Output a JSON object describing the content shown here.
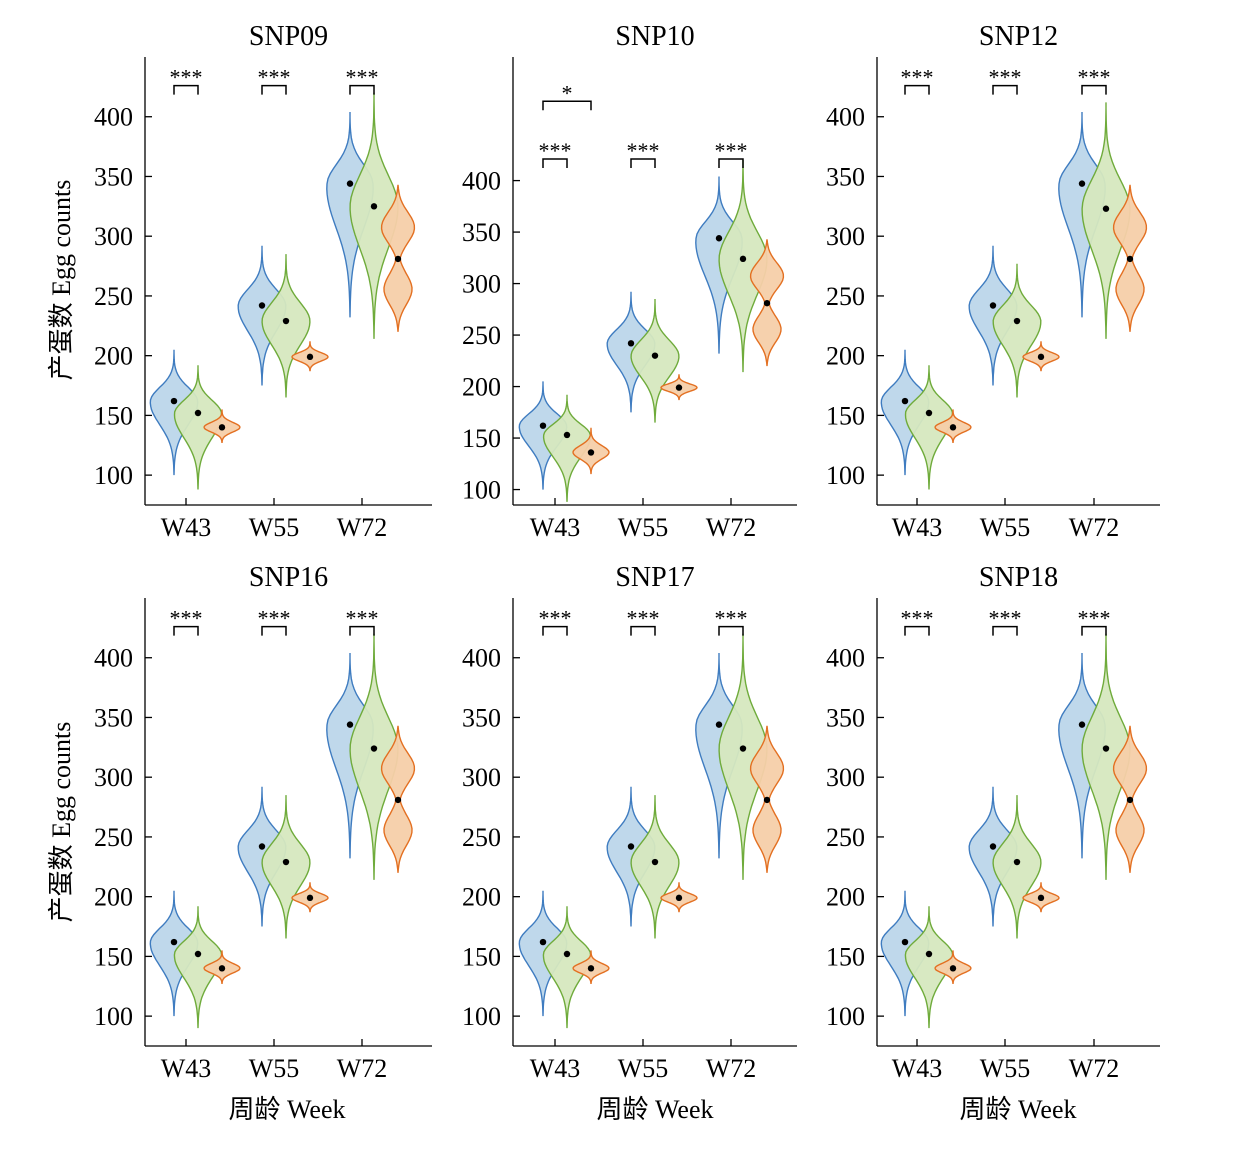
{
  "figure": {
    "ylabel": "产蛋数 Egg counts",
    "xlabel": "周龄 Week",
    "colors": {
      "blue_fill": "#bcd6ea",
      "blue_line": "#3f7cc0",
      "green_fill": "#d6e8bf",
      "green_line": "#6fab3b",
      "orange_fill": "#f6cfa9",
      "orange_line": "#e37022"
    }
  },
  "chart_data": [
    {
      "type": "violin",
      "title": "SNP09",
      "categories": [
        "W43",
        "W55",
        "W72"
      ],
      "yticks": [
        100,
        150,
        200,
        250,
        300,
        350,
        400
      ],
      "ylim": [
        75,
        450
      ],
      "series": [
        {
          "color": "blue",
          "medians": [
            162,
            242,
            344
          ],
          "ranges": [
            [
              100,
              205
            ],
            [
              175,
              292
            ],
            [
              232,
              404
            ]
          ]
        },
        {
          "color": "green",
          "medians": [
            152,
            229,
            325
          ],
          "ranges": [
            [
              88,
              192
            ],
            [
              165,
              285
            ],
            [
              214,
              420
            ]
          ]
        },
        {
          "color": "orange",
          "medians": [
            140,
            199,
            281
          ],
          "ranges": [
            [
              127,
              155
            ],
            [
              187,
              212
            ],
            [
              220,
              343
            ]
          ]
        }
      ],
      "significance": [
        {
          "label": "***",
          "category": 0,
          "from": 0,
          "to": 1,
          "y": 426
        },
        {
          "label": "***",
          "category": 1,
          "from": 0,
          "to": 1,
          "y": 426
        },
        {
          "label": "***",
          "category": 2,
          "from": 0,
          "to": 1,
          "y": 426
        }
      ]
    },
    {
      "type": "violin",
      "title": "SNP10",
      "categories": [
        "W43",
        "W55",
        "W72"
      ],
      "yticks": [
        100,
        150,
        200,
        250,
        300,
        350,
        400
      ],
      "ylim": [
        85,
        520
      ],
      "series": [
        {
          "color": "blue",
          "medians": [
            162,
            242,
            344
          ],
          "ranges": [
            [
              100,
              205
            ],
            [
              175,
              292
            ],
            [
              232,
              404
            ]
          ]
        },
        {
          "color": "green",
          "medians": [
            153,
            230,
            324
          ],
          "ranges": [
            [
              88,
              192
            ],
            [
              165,
              285
            ],
            [
              214,
              420
            ]
          ]
        },
        {
          "color": "orange",
          "medians": [
            136,
            199,
            281
          ],
          "ranges": [
            [
              115,
              160
            ],
            [
              187,
              212
            ],
            [
              220,
              343
            ]
          ]
        }
      ],
      "significance": [
        {
          "label": "*",
          "category": 0,
          "from": 0,
          "to": 2,
          "y": 477
        },
        {
          "label": "***",
          "category": 0,
          "from": 0,
          "to": 1,
          "y": 421
        },
        {
          "label": "***",
          "category": 1,
          "from": 0,
          "to": 1,
          "y": 421
        },
        {
          "label": "***",
          "category": 2,
          "from": 0,
          "to": 1,
          "y": 421
        }
      ]
    },
    {
      "type": "violin",
      "title": "SNP12",
      "categories": [
        "W43",
        "W55",
        "W72"
      ],
      "yticks": [
        100,
        150,
        200,
        250,
        300,
        350,
        400
      ],
      "ylim": [
        75,
        450
      ],
      "series": [
        {
          "color": "blue",
          "medians": [
            162,
            242,
            344
          ],
          "ranges": [
            [
              100,
              205
            ],
            [
              175,
              292
            ],
            [
              232,
              404
            ]
          ]
        },
        {
          "color": "green",
          "medians": [
            152,
            229,
            323
          ],
          "ranges": [
            [
              88,
              192
            ],
            [
              165,
              277
            ],
            [
              214,
              412
            ]
          ]
        },
        {
          "color": "orange",
          "medians": [
            140,
            199,
            281
          ],
          "ranges": [
            [
              127,
              155
            ],
            [
              187,
              212
            ],
            [
              220,
              343
            ]
          ]
        }
      ],
      "significance": [
        {
          "label": "***",
          "category": 0,
          "from": 0,
          "to": 1,
          "y": 426
        },
        {
          "label": "***",
          "category": 1,
          "from": 0,
          "to": 1,
          "y": 426
        },
        {
          "label": "***",
          "category": 2,
          "from": 0,
          "to": 1,
          "y": 426
        }
      ]
    },
    {
      "type": "violin",
      "title": "SNP16",
      "categories": [
        "W43",
        "W55",
        "W72"
      ],
      "yticks": [
        100,
        150,
        200,
        250,
        300,
        350,
        400
      ],
      "ylim": [
        75,
        450
      ],
      "series": [
        {
          "color": "blue",
          "medians": [
            162,
            242,
            344
          ],
          "ranges": [
            [
              100,
              205
            ],
            [
              175,
              292
            ],
            [
              232,
              404
            ]
          ]
        },
        {
          "color": "green",
          "medians": [
            152,
            229,
            324
          ],
          "ranges": [
            [
              90,
              192
            ],
            [
              165,
              285
            ],
            [
              214,
              420
            ]
          ]
        },
        {
          "color": "orange",
          "medians": [
            140,
            199,
            281
          ],
          "ranges": [
            [
              127,
              155
            ],
            [
              187,
              212
            ],
            [
              220,
              343
            ]
          ]
        }
      ],
      "significance": [
        {
          "label": "***",
          "category": 0,
          "from": 0,
          "to": 1,
          "y": 426
        },
        {
          "label": "***",
          "category": 1,
          "from": 0,
          "to": 1,
          "y": 426
        },
        {
          "label": "***",
          "category": 2,
          "from": 0,
          "to": 1,
          "y": 426
        }
      ]
    },
    {
      "type": "violin",
      "title": "SNP17",
      "categories": [
        "W43",
        "W55",
        "W72"
      ],
      "yticks": [
        100,
        150,
        200,
        250,
        300,
        350,
        400
      ],
      "ylim": [
        75,
        450
      ],
      "series": [
        {
          "color": "blue",
          "medians": [
            162,
            242,
            344
          ],
          "ranges": [
            [
              100,
              205
            ],
            [
              175,
              292
            ],
            [
              232,
              404
            ]
          ]
        },
        {
          "color": "green",
          "medians": [
            152,
            229,
            324
          ],
          "ranges": [
            [
              90,
              192
            ],
            [
              165,
              285
            ],
            [
              214,
              420
            ]
          ]
        },
        {
          "color": "orange",
          "medians": [
            140,
            199,
            281
          ],
          "ranges": [
            [
              127,
              155
            ],
            [
              187,
              212
            ],
            [
              220,
              343
            ]
          ]
        }
      ],
      "significance": [
        {
          "label": "***",
          "category": 0,
          "from": 0,
          "to": 1,
          "y": 426
        },
        {
          "label": "***",
          "category": 1,
          "from": 0,
          "to": 1,
          "y": 426
        },
        {
          "label": "***",
          "category": 2,
          "from": 0,
          "to": 1,
          "y": 426
        }
      ]
    },
    {
      "type": "violin",
      "title": "SNP18",
      "categories": [
        "W43",
        "W55",
        "W72"
      ],
      "yticks": [
        100,
        150,
        200,
        250,
        300,
        350,
        400
      ],
      "ylim": [
        75,
        450
      ],
      "series": [
        {
          "color": "blue",
          "medians": [
            162,
            242,
            344
          ],
          "ranges": [
            [
              100,
              205
            ],
            [
              175,
              292
            ],
            [
              232,
              404
            ]
          ]
        },
        {
          "color": "green",
          "medians": [
            152,
            229,
            324
          ],
          "ranges": [
            [
              90,
              192
            ],
            [
              165,
              285
            ],
            [
              214,
              420
            ]
          ]
        },
        {
          "color": "orange",
          "medians": [
            140,
            199,
            281
          ],
          "ranges": [
            [
              127,
              155
            ],
            [
              187,
              212
            ],
            [
              220,
              343
            ]
          ]
        }
      ],
      "significance": [
        {
          "label": "***",
          "category": 0,
          "from": 0,
          "to": 1,
          "y": 426
        },
        {
          "label": "***",
          "category": 1,
          "from": 0,
          "to": 1,
          "y": 426
        },
        {
          "label": "***",
          "category": 2,
          "from": 0,
          "to": 1,
          "y": 426
        }
      ]
    }
  ]
}
